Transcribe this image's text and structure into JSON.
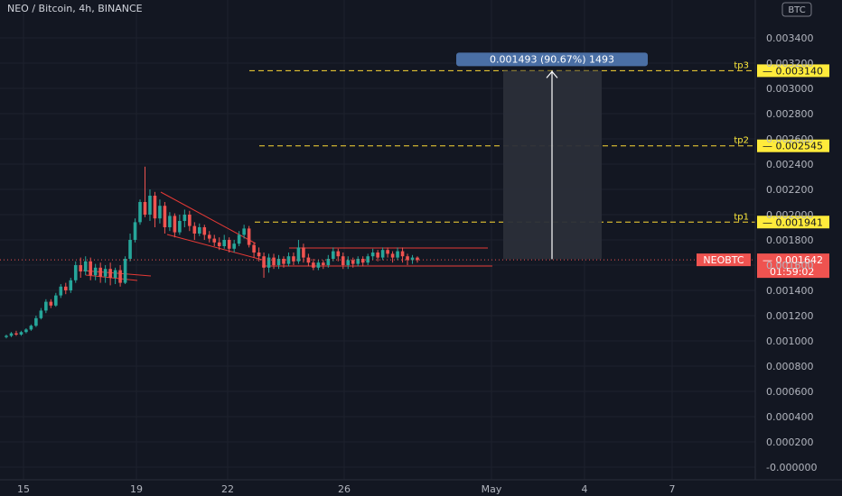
{
  "header": {
    "title": "NEO / Bitcoin, 4h, BINANCE",
    "currency": "BTC"
  },
  "chart_data": {
    "type": "candlestick",
    "ylim": [
      -0.0001,
      0.0036
    ],
    "y_ticks": [
      "0.003400",
      "0.003200",
      "0.003000",
      "0.002800",
      "0.002600",
      "0.002400",
      "0.002200",
      "0.002000",
      "0.001800",
      "0.001600",
      "0.001400",
      "0.001200",
      "0.001000",
      "0.000800",
      "0.000600",
      "0.000400",
      "0.000200",
      "-0.000000"
    ],
    "x_ticks": [
      "15",
      "19",
      "22",
      "26",
      "May",
      "4",
      "7"
    ],
    "x_range_days": [
      14.8,
      9.2
    ],
    "levels": [
      {
        "name": "tp3",
        "value": 0.00314,
        "label": "0.003140"
      },
      {
        "name": "tp2",
        "value": 0.002545,
        "label": "0.002545"
      },
      {
        "name": "tp1",
        "value": 0.001941,
        "label": "0.001941"
      }
    ],
    "current_price": {
      "symbol": "NEOBTC",
      "value": 0.001642,
      "label": "0.001642",
      "countdown": "01:59:02"
    },
    "measure": {
      "from": 0.001647,
      "to": 0.00314,
      "label": "0.001493 (90.67%) 1493"
    },
    "candles": [
      [
        0.00103,
        0.00104,
        0.00102,
        0.00105
      ],
      [
        0.00104,
        0.00106,
        0.00103,
        0.00107
      ],
      [
        0.00106,
        0.00105,
        0.00104,
        0.00108
      ],
      [
        0.00105,
        0.00107,
        0.00104,
        0.00108
      ],
      [
        0.00107,
        0.00109,
        0.00106,
        0.0011
      ],
      [
        0.00109,
        0.00112,
        0.00108,
        0.00113
      ],
      [
        0.00112,
        0.00118,
        0.00111,
        0.0012
      ],
      [
        0.00118,
        0.00124,
        0.00117,
        0.00126
      ],
      [
        0.00124,
        0.00131,
        0.00122,
        0.00133
      ],
      [
        0.00131,
        0.00128,
        0.00126,
        0.00133
      ],
      [
        0.00128,
        0.00136,
        0.00127,
        0.00138
      ],
      [
        0.00136,
        0.00143,
        0.00134,
        0.00145
      ],
      [
        0.00143,
        0.0014,
        0.00137,
        0.00146
      ],
      [
        0.0014,
        0.00148,
        0.00138,
        0.0015
      ],
      [
        0.00148,
        0.0016,
        0.00146,
        0.00163
      ],
      [
        0.0016,
        0.00155,
        0.0015,
        0.00166
      ],
      [
        0.00155,
        0.00163,
        0.00152,
        0.00167
      ],
      [
        0.00163,
        0.00152,
        0.00148,
        0.00166
      ],
      [
        0.00152,
        0.00158,
        0.00148,
        0.00161
      ],
      [
        0.00158,
        0.00151,
        0.00146,
        0.00162
      ],
      [
        0.00151,
        0.00157,
        0.00146,
        0.0016
      ],
      [
        0.00157,
        0.0015,
        0.00144,
        0.00162
      ],
      [
        0.0015,
        0.00156,
        0.00145,
        0.00158
      ],
      [
        0.00156,
        0.00146,
        0.00143,
        0.0016
      ],
      [
        0.00146,
        0.00165,
        0.00145,
        0.00167
      ],
      [
        0.00165,
        0.0018,
        0.00163,
        0.00185
      ],
      [
        0.0018,
        0.00194,
        0.00178,
        0.00197
      ],
      [
        0.00194,
        0.0021,
        0.00192,
        0.00212
      ],
      [
        0.0021,
        0.002,
        0.00198,
        0.00238
      ],
      [
        0.002,
        0.00215,
        0.00195,
        0.0022
      ],
      [
        0.00215,
        0.00197,
        0.0019,
        0.00218
      ],
      [
        0.00197,
        0.00207,
        0.00193,
        0.00212
      ],
      [
        0.00207,
        0.0019,
        0.00185,
        0.0021
      ],
      [
        0.0019,
        0.00199,
        0.00187,
        0.00202
      ],
      [
        0.00199,
        0.00186,
        0.00182,
        0.00201
      ],
      [
        0.00186,
        0.00195,
        0.00184,
        0.002
      ],
      [
        0.00195,
        0.002,
        0.0019,
        0.00204
      ],
      [
        0.002,
        0.00191,
        0.00187,
        0.00203
      ],
      [
        0.00191,
        0.00185,
        0.0018,
        0.00194
      ],
      [
        0.00185,
        0.0019,
        0.00183,
        0.00193
      ],
      [
        0.0019,
        0.00184,
        0.0018,
        0.00192
      ],
      [
        0.00184,
        0.00181,
        0.00178,
        0.00187
      ],
      [
        0.00181,
        0.00178,
        0.00175,
        0.00184
      ],
      [
        0.00178,
        0.00175,
        0.00172,
        0.00182
      ],
      [
        0.00175,
        0.0018,
        0.00173,
        0.00184
      ],
      [
        0.0018,
        0.00173,
        0.0017,
        0.00182
      ],
      [
        0.00173,
        0.00177,
        0.0017,
        0.0018
      ],
      [
        0.00177,
        0.00184,
        0.00175,
        0.00187
      ],
      [
        0.00184,
        0.00189,
        0.00181,
        0.00192
      ],
      [
        0.00189,
        0.00176,
        0.00174,
        0.00191
      ],
      [
        0.00176,
        0.0017,
        0.00166,
        0.00178
      ],
      [
        0.0017,
        0.00167,
        0.00163,
        0.00174
      ],
      [
        0.00167,
        0.00158,
        0.0015,
        0.0017
      ],
      [
        0.00158,
        0.00166,
        0.00154,
        0.00169
      ],
      [
        0.00166,
        0.0016,
        0.00157,
        0.00169
      ],
      [
        0.0016,
        0.00165,
        0.00157,
        0.00168
      ],
      [
        0.00165,
        0.00161,
        0.00158,
        0.00167
      ],
      [
        0.00161,
        0.00167,
        0.00159,
        0.0017
      ],
      [
        0.00167,
        0.00163,
        0.0016,
        0.0017
      ],
      [
        0.00163,
        0.00174,
        0.00161,
        0.0018
      ],
      [
        0.00174,
        0.00166,
        0.00162,
        0.00177
      ],
      [
        0.00166,
        0.00162,
        0.00159,
        0.00169
      ],
      [
        0.00162,
        0.00158,
        0.00156,
        0.00165
      ],
      [
        0.00158,
        0.00162,
        0.00156,
        0.00164
      ],
      [
        0.00162,
        0.0016,
        0.00157,
        0.00164
      ],
      [
        0.0016,
        0.00165,
        0.00158,
        0.00168
      ],
      [
        0.00165,
        0.00171,
        0.00163,
        0.00174
      ],
      [
        0.00171,
        0.00167,
        0.00163,
        0.00173
      ],
      [
        0.00167,
        0.0016,
        0.00157,
        0.0017
      ],
      [
        0.0016,
        0.00164,
        0.00157,
        0.00167
      ],
      [
        0.00164,
        0.00161,
        0.00158,
        0.00166
      ],
      [
        0.00161,
        0.00165,
        0.00159,
        0.00167
      ],
      [
        0.00165,
        0.00162,
        0.00159,
        0.00167
      ],
      [
        0.00162,
        0.00167,
        0.0016,
        0.00169
      ],
      [
        0.00167,
        0.0017,
        0.00164,
        0.00173
      ],
      [
        0.0017,
        0.00166,
        0.00163,
        0.00172
      ],
      [
        0.00166,
        0.00172,
        0.00164,
        0.00174
      ],
      [
        0.00172,
        0.00169,
        0.00166,
        0.00174
      ],
      [
        0.00169,
        0.00166,
        0.00162,
        0.00171
      ],
      [
        0.00166,
        0.00171,
        0.00164,
        0.00174
      ],
      [
        0.00171,
        0.00167,
        0.00162,
        0.00174
      ],
      [
        0.00167,
        0.00164,
        0.0016,
        0.00169
      ],
      [
        0.00164,
        0.00166,
        0.00161,
        0.00168
      ],
      [
        0.00166,
        0.00164,
        0.00162,
        0.00167
      ]
    ]
  }
}
